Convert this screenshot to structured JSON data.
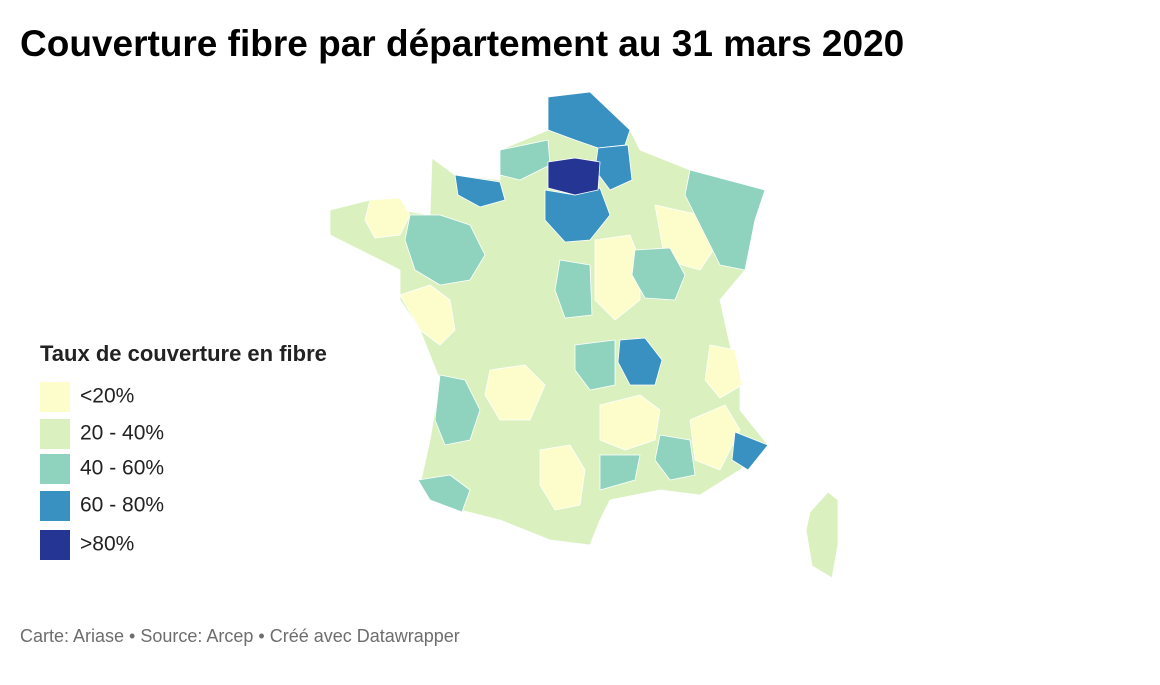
{
  "header": {
    "title": "Couverture fibre par département au 31 mars 2020"
  },
  "legend": {
    "title": "Taux de couverture en fibre",
    "items": [
      {
        "label": "<20%",
        "color": "#fcfdcb"
      },
      {
        "label": "20 - 40%",
        "color": "#daf1bf"
      },
      {
        "label": "40 - 60%",
        "color": "#8fd3bf"
      },
      {
        "label": "60 - 80%",
        "color": "#3991c1"
      },
      {
        "label": ">80%",
        "color": "#243594"
      }
    ]
  },
  "footer": "Carte: Ariase • Source: Arcep • Créé avec Datawrapper"
}
